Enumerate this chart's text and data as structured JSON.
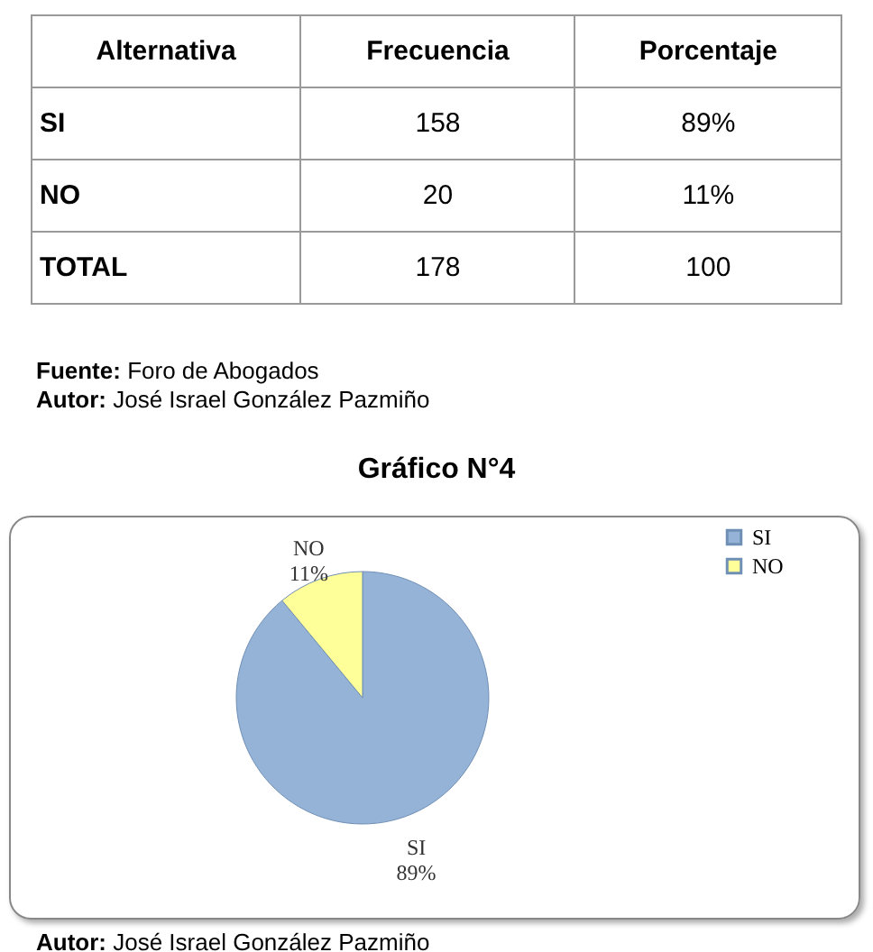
{
  "chart_data": {
    "type": "pie",
    "title": "Gráfico N°4",
    "categories": [
      "SI",
      "NO"
    ],
    "values": [
      89,
      11
    ],
    "colors": [
      "#95b3d7",
      "#ffff99"
    ],
    "value_labels": [
      "89%",
      "11%"
    ],
    "legend": "right",
    "annotations": [
      "Alternativa",
      "Frecuencia",
      "Porcentaje",
      "SI",
      "158",
      "89%",
      "NO",
      "20",
      "11%",
      "TOTAL",
      "178",
      "100",
      "Fuente: Foro de Abogados",
      "Autor: José Israel González Pazmiño",
      "Autor: José Israel González Pazmiño"
    ]
  }
}
